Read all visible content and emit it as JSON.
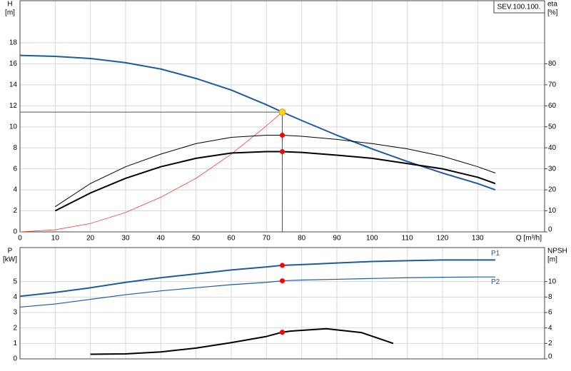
{
  "chart_data": [
    {
      "type": "line",
      "model": "SEV.100.100.",
      "ylabel": "H",
      "yunit": "[m]",
      "y2label": "eta",
      "y2unit": "[%]",
      "xlabel": "Q [m³/h]",
      "xlim": [
        0,
        149
      ],
      "xticks": [
        0,
        10,
        20,
        30,
        40,
        50,
        60,
        70,
        80,
        90,
        100,
        110,
        120,
        130
      ],
      "ylim": [
        0,
        22
      ],
      "yticks": [
        0,
        2,
        4,
        6,
        8,
        10,
        12,
        14,
        16,
        18
      ],
      "y2lim": [
        0,
        110
      ],
      "y2ticks": [
        0,
        10,
        20,
        30,
        40,
        50,
        60,
        70,
        80
      ],
      "grid": true,
      "duty_x": 74.5,
      "series": [
        {
          "color": "#1f5b9c",
          "width": 2,
          "marker_color": "#ffd21f",
          "crosshair": true,
          "x": [
            0,
            10,
            20,
            30,
            40,
            50,
            60,
            70,
            74.5,
            80,
            90,
            100,
            110,
            120,
            130,
            135
          ],
          "values": [
            16.8,
            16.7,
            16.5,
            16.1,
            15.5,
            14.6,
            13.5,
            12.1,
            11.4,
            10.6,
            9.2,
            7.9,
            6.7,
            5.6,
            4.6,
            4.0
          ]
        },
        {
          "color": "#ff3b30",
          "width": 0.8,
          "x": [
            0,
            10,
            20,
            30,
            40,
            50,
            60,
            70,
            74.5
          ],
          "values": [
            0,
            0.2,
            0.8,
            1.85,
            3.3,
            5.1,
            7.4,
            10.1,
            11.4
          ]
        },
        {
          "color": "#000000",
          "width": 1,
          "axis": "y2",
          "marker_color": "#ff0000",
          "x": [
            10,
            20,
            30,
            40,
            50,
            60,
            70,
            74.5,
            80,
            90,
            100,
            110,
            120,
            130,
            135
          ],
          "values": [
            12,
            23,
            31,
            37,
            42,
            45,
            46,
            46,
            45.5,
            44,
            42,
            39.5,
            36,
            31,
            28
          ]
        },
        {
          "color": "#000000",
          "width": 2,
          "axis": "y2",
          "marker_color": "#ff0000",
          "x": [
            10,
            20,
            30,
            40,
            50,
            60,
            70,
            74.5,
            80,
            90,
            100,
            110,
            120,
            130,
            135
          ],
          "values": [
            10,
            18.5,
            25.5,
            31,
            35,
            37.5,
            38.2,
            38.2,
            37.8,
            36.5,
            35,
            32.5,
            30,
            26,
            23
          ]
        }
      ]
    },
    {
      "type": "line",
      "ylabel": "P",
      "yunit": "[kW]",
      "y2label": "NPSH",
      "y2unit": "[m]",
      "xlim": [
        0,
        149
      ],
      "xticks": [
        0,
        10,
        20,
        30,
        40,
        50,
        60,
        70,
        80,
        90,
        100,
        110,
        120,
        130
      ],
      "ylim": [
        0,
        7.2
      ],
      "yticks": [
        0,
        1,
        2,
        3,
        4,
        5
      ],
      "y2lim": [
        0,
        14.4
      ],
      "y2ticks": [
        0,
        2,
        4,
        6,
        8,
        10
      ],
      "grid": true,
      "duty_x": 74.5,
      "series": [
        {
          "name": "P1",
          "color": "#1f5b9c",
          "width": 2,
          "marker_color": "#ff0000",
          "x": [
            0,
            10,
            20,
            30,
            40,
            50,
            60,
            70,
            74.5,
            80,
            90,
            100,
            110,
            120,
            130,
            135
          ],
          "values": [
            4.05,
            4.3,
            4.6,
            4.95,
            5.25,
            5.5,
            5.75,
            5.95,
            6.05,
            6.1,
            6.2,
            6.3,
            6.35,
            6.4,
            6.4,
            6.4
          ]
        },
        {
          "name": "P2",
          "color": "#1f5b9c",
          "width": 1.2,
          "marker_color": "#ff0000",
          "x": [
            0,
            10,
            20,
            30,
            40,
            50,
            60,
            70,
            74.5,
            80,
            90,
            100,
            110,
            120,
            130,
            135
          ],
          "values": [
            3.35,
            3.55,
            3.85,
            4.15,
            4.4,
            4.6,
            4.8,
            4.95,
            5.05,
            5.1,
            5.15,
            5.2,
            5.25,
            5.28,
            5.3,
            5.3
          ]
        },
        {
          "color": "#000000",
          "width": 2,
          "axis": "y2",
          "marker_color": "#ff0000",
          "x": [
            20,
            30,
            40,
            50,
            60,
            70,
            74.5,
            77,
            87,
            97,
            106
          ],
          "values": [
            0.6,
            0.65,
            0.9,
            1.4,
            2.1,
            2.9,
            3.45,
            3.6,
            3.9,
            3.4,
            2.0
          ]
        }
      ]
    }
  ]
}
